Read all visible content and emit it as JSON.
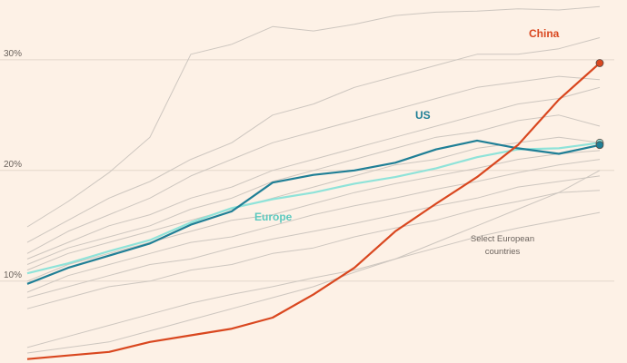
{
  "chart_data": {
    "type": "line",
    "ylim": [
      2.6,
      35.4
    ],
    "yticks": [
      {
        "value": 10,
        "label": "10%"
      },
      {
        "value": 20,
        "label": "20%"
      },
      {
        "value": 30,
        "label": "30%"
      }
    ],
    "grid": true,
    "annotation": [
      "Select European",
      "countries"
    ],
    "series": [
      {
        "color": "#cdc6bf",
        "values": [
          14.9,
          17.2,
          19.8,
          23,
          30.5,
          31.4,
          33,
          32.6,
          33.2,
          34,
          34.3,
          34.4,
          34.6,
          34.5,
          34.8
        ]
      },
      {
        "color": "#cdc6bf",
        "values": [
          13.5,
          15.5,
          17.5,
          19,
          21,
          22.5,
          25,
          26,
          27.5,
          28.5,
          29.5,
          30.5,
          30.5,
          31,
          32
        ]
      },
      {
        "color": "#cdc6bf",
        "values": [
          12.5,
          14.5,
          16,
          17.5,
          19.5,
          21,
          22.5,
          23.5,
          24.5,
          25.5,
          26.5,
          27.5,
          28,
          28.5,
          28.2
        ]
      },
      {
        "color": "#cdc6bf",
        "values": [
          12,
          13.5,
          15,
          16,
          17.5,
          18.5,
          20,
          21,
          22,
          23,
          24,
          25,
          26,
          26.5,
          27.5
        ]
      },
      {
        "color": "#cdc6bf",
        "values": [
          11.5,
          13,
          14,
          15,
          16.5,
          17.5,
          19,
          20,
          21,
          22,
          23,
          23.5,
          24.5,
          25,
          24
        ]
      },
      {
        "color": "#cdc6bf",
        "values": [
          11,
          12.5,
          13.5,
          14.5,
          15.5,
          16.5,
          17.5,
          18.5,
          19.5,
          20.5,
          21,
          22,
          22.5,
          23,
          22.5
        ]
      },
      {
        "color": "#cdc6bf",
        "values": [
          10,
          11.5,
          12.5,
          13.5,
          14.5,
          15.5,
          16,
          17,
          18,
          18.8,
          19.5,
          20.2,
          21,
          21.5,
          21.8
        ]
      },
      {
        "color": "#cdc6bf",
        "values": [
          9,
          10.5,
          11.5,
          12.5,
          13.5,
          14,
          15,
          16,
          16.8,
          17.5,
          18.3,
          19,
          19.8,
          20.5,
          21
        ]
      },
      {
        "color": "#cdc6bf",
        "values": [
          8.5,
          9.5,
          10.5,
          11.5,
          12,
          13,
          13.8,
          14.5,
          15.2,
          16,
          16.8,
          17.5,
          18.5,
          19,
          19.5
        ]
      },
      {
        "color": "#cdc6bf",
        "values": [
          7.5,
          8.5,
          9.5,
          10,
          11,
          11.5,
          12.5,
          13,
          14,
          14.8,
          15.5,
          16.5,
          17.2,
          18,
          18.2
        ]
      },
      {
        "color": "#cdc6bf",
        "values": [
          4,
          5,
          6,
          7,
          8,
          8.8,
          9.5,
          10.3,
          11,
          12,
          13,
          14,
          14.8,
          15.5,
          16.2
        ]
      },
      {
        "color": "#cdc6bf",
        "values": [
          3.5,
          4,
          4.5,
          5.5,
          6.5,
          7.5,
          8.5,
          9.5,
          10.8,
          12,
          13.5,
          15,
          16.5,
          18,
          20
        ]
      },
      {
        "name": "Europe",
        "color": "#8fe3d9",
        "values": [
          10.7,
          11.6,
          12.7,
          13.7,
          15.3,
          16.6,
          17.4,
          18.0,
          18.8,
          19.4,
          20.2,
          21.2,
          21.9,
          22.0,
          22.5
        ]
      },
      {
        "name": "US",
        "color": "#1f7f96",
        "values": [
          9.75,
          11.2,
          12.3,
          13.4,
          15.1,
          16.3,
          18.9,
          19.6,
          20.0,
          20.7,
          21.9,
          22.7,
          22.0,
          21.5,
          22.3
        ]
      },
      {
        "name": "China",
        "color": "#d9471f",
        "values": [
          2.95,
          3.28,
          3.6,
          4.5,
          5.1,
          5.7,
          6.7,
          8.8,
          11.2,
          14.5,
          17.0,
          19.4,
          22.3,
          26.4,
          29.7
        ]
      }
    ]
  }
}
